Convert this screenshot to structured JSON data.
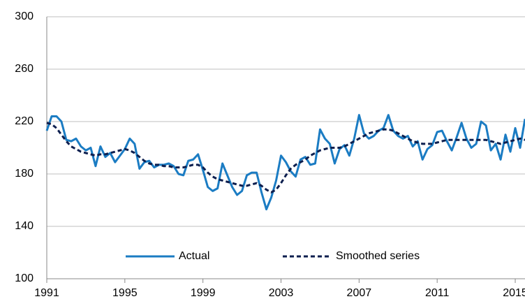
{
  "chart_data": {
    "type": "line",
    "x": [
      1991,
      1991.25,
      1991.5,
      1991.75,
      1992,
      1992.25,
      1992.5,
      1992.75,
      1993,
      1993.25,
      1993.5,
      1993.75,
      1994,
      1994.25,
      1994.5,
      1994.75,
      1995,
      1995.25,
      1995.5,
      1995.75,
      1996,
      1996.25,
      1996.5,
      1996.75,
      1997,
      1997.25,
      1997.5,
      1997.75,
      1998,
      1998.25,
      1998.5,
      1998.75,
      1999,
      1999.25,
      1999.5,
      1999.75,
      2000,
      2000.25,
      2000.5,
      2000.75,
      2001,
      2001.25,
      2001.5,
      2001.75,
      2002,
      2002.25,
      2002.5,
      2002.75,
      2003,
      2003.25,
      2003.5,
      2003.75,
      2004,
      2004.25,
      2004.5,
      2004.75,
      2005,
      2005.25,
      2005.5,
      2005.75,
      2006,
      2006.25,
      2006.5,
      2006.75,
      2007,
      2007.25,
      2007.5,
      2007.75,
      2008,
      2008.25,
      2008.5,
      2008.75,
      2009,
      2009.25,
      2009.5,
      2009.75,
      2010,
      2010.25,
      2010.5,
      2010.75,
      2011,
      2011.25,
      2011.5,
      2011.75,
      2012,
      2012.25,
      2012.5,
      2012.75,
      2013,
      2013.25,
      2013.5,
      2013.75,
      2014,
      2014.25,
      2014.5,
      2014.75,
      2015,
      2015.25,
      2015.5
    ],
    "series": [
      {
        "name": "Actual",
        "color": "#1b7cc3",
        "dashed": false,
        "values": [
          213,
          224,
          224,
          220,
          206,
          205,
          207,
          201,
          198,
          200,
          186,
          201,
          193,
          196,
          189,
          194,
          199,
          207,
          203,
          184,
          189,
          190,
          185,
          187,
          187,
          188,
          186,
          180,
          179,
          190,
          191,
          195,
          183,
          170,
          167,
          169,
          188,
          179,
          170,
          164,
          167,
          179,
          181,
          181,
          166,
          153,
          162,
          175,
          194,
          189,
          182,
          178,
          191,
          193,
          187,
          188,
          214,
          207,
          203,
          188,
          199,
          202,
          194,
          207,
          225,
          211,
          207,
          209,
          213,
          215,
          225,
          213,
          209,
          207,
          209,
          201,
          205,
          191,
          199,
          202,
          212,
          213,
          205,
          198,
          208,
          219,
          207,
          200,
          203,
          220,
          217,
          198,
          203,
          191,
          210,
          197,
          215,
          200,
          222
        ]
      },
      {
        "name": "Smoothed series",
        "color": "#0d1f4f",
        "dashed": true,
        "values": [
          219,
          218,
          215,
          210,
          205,
          201,
          199,
          197,
          196,
          195,
          194,
          195,
          195,
          196,
          197,
          198,
          199,
          198,
          196,
          193,
          190,
          188,
          187,
          187,
          186,
          186,
          185,
          185,
          185,
          186,
          187,
          187,
          185,
          181,
          178,
          176,
          175,
          174,
          173,
          172,
          171,
          171,
          172,
          173,
          171,
          168,
          166,
          168,
          173,
          179,
          184,
          187,
          189,
          191,
          194,
          196,
          198,
          199,
          200,
          200,
          200,
          201,
          203,
          205,
          207,
          209,
          211,
          212,
          213,
          214,
          214,
          213,
          211,
          209,
          207,
          205,
          204,
          203,
          203,
          203,
          204,
          205,
          206,
          206,
          206,
          206,
          206,
          206,
          206,
          206,
          206,
          205,
          204,
          203,
          204,
          205,
          206,
          207,
          206
        ]
      }
    ],
    "xlim": [
      1991,
      2015.5
    ],
    "xticks": [
      1991,
      1995,
      1999,
      2003,
      2007,
      2011,
      2015
    ],
    "ylim": [
      100,
      300
    ],
    "yticks": [
      100,
      140,
      180,
      220,
      260,
      300
    ],
    "grid": true
  }
}
